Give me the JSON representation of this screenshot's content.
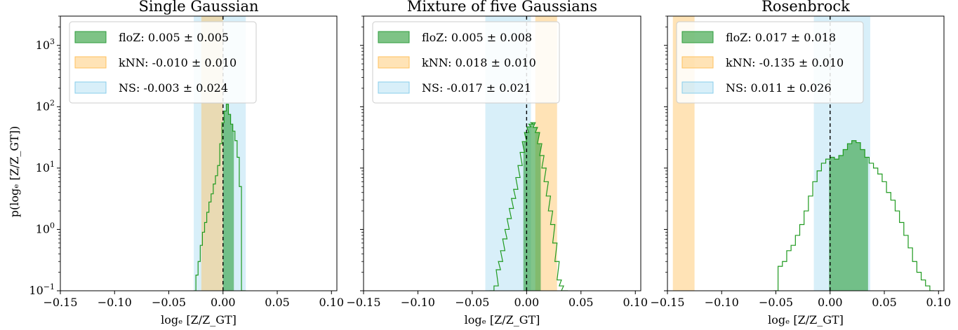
{
  "figure": {
    "ylabel": "p(logₑ [Z/Z_GT])",
    "xlabel": "logₑ [Z/Z_GT]"
  },
  "colors": {
    "floz": "#2e9e3c",
    "knn": "#ffc15e",
    "ns": "#87ceeb",
    "hist_line": "#1f9a1f",
    "axis": "#000000"
  },
  "chart_data": [
    {
      "type": "area",
      "title": "Single Gaussian",
      "xlim": [
        -0.15,
        0.105
      ],
      "ylim": [
        0.1,
        3000
      ],
      "yscale": "log",
      "xticks": [
        -0.15,
        -0.1,
        -0.05,
        0.0,
        0.05,
        0.1
      ],
      "xtick_labels": [
        "−0.15",
        "−0.10",
        "−0.05",
        "0.00",
        "0.05",
        "0.10"
      ],
      "yticks": [
        0.1,
        1,
        10,
        100,
        1000
      ],
      "ytick_labels": [
        "10⁻¹",
        "10⁰",
        "10¹",
        "10²",
        "10³"
      ],
      "legend_position": "top-left",
      "legend": [
        {
          "method": "floZ",
          "label": "floZ: 0.005 ± 0.005"
        },
        {
          "method": "kNN",
          "label": "kNN: -0.010 ± 0.010"
        },
        {
          "method": "NS",
          "label": "NS: -0.003 ± 0.024"
        }
      ],
      "bands": [
        {
          "method": "NS",
          "mean": -0.003,
          "std": 0.024
        },
        {
          "method": "kNN",
          "mean": -0.01,
          "std": 0.01
        },
        {
          "method": "floZ",
          "mean": 0.005,
          "std": 0.005
        }
      ],
      "histogram": {
        "x": [
          -0.026,
          -0.024,
          -0.022,
          -0.02,
          -0.018,
          -0.016,
          -0.014,
          -0.012,
          -0.01,
          -0.008,
          -0.006,
          -0.004,
          -0.002,
          0.0,
          0.002,
          0.004,
          0.006,
          0.008,
          0.01,
          0.012,
          0.014,
          0.016,
          0.018,
          0.02
        ],
        "y": [
          0.1,
          0.18,
          0.3,
          0.55,
          0.9,
          1.3,
          1.9,
          2.8,
          3.8,
          5.5,
          7.5,
          11,
          25,
          55,
          85,
          110,
          75,
          52,
          40,
          28,
          15,
          5,
          0.1,
          0.1
        ]
      },
      "reference_line_x": 0.0
    },
    {
      "type": "area",
      "title": "Mixture of five Gaussians",
      "xlim": [
        -0.15,
        0.105
      ],
      "ylim": [
        0.1,
        3000
      ],
      "yscale": "log",
      "xticks": [
        -0.15,
        -0.1,
        -0.05,
        0.0,
        0.05,
        0.1
      ],
      "xtick_labels": [
        "−0.15",
        "−0.10",
        "−0.05",
        "0.00",
        "0.05",
        "0.10"
      ],
      "yticks": [
        0.1,
        1,
        10,
        100,
        1000
      ],
      "legend_position": "top-left",
      "legend": [
        {
          "method": "floZ",
          "label": "floZ: 0.005 ± 0.008"
        },
        {
          "method": "kNN",
          "label": "kNN: 0.018 ± 0.010"
        },
        {
          "method": "NS",
          "label": "NS: -0.017 ± 0.021"
        }
      ],
      "bands": [
        {
          "method": "NS",
          "mean": -0.017,
          "std": 0.021
        },
        {
          "method": "kNN",
          "mean": 0.018,
          "std": 0.01
        },
        {
          "method": "floZ",
          "mean": 0.005,
          "std": 0.008
        }
      ],
      "histogram": {
        "x": [
          -0.032,
          -0.028,
          -0.026,
          -0.024,
          -0.022,
          -0.02,
          -0.018,
          -0.016,
          -0.014,
          -0.012,
          -0.01,
          -0.008,
          -0.006,
          -0.004,
          -0.002,
          0.0,
          0.002,
          0.004,
          0.006,
          0.008,
          0.01,
          0.012,
          0.014,
          0.016,
          0.018,
          0.02,
          0.022,
          0.024,
          0.026,
          0.028,
          0.03,
          0.032,
          0.034,
          0.036
        ],
        "y": [
          0.1,
          0.12,
          0.22,
          0.3,
          0.45,
          0.7,
          1.0,
          1.5,
          2.2,
          3.2,
          4.5,
          7,
          11,
          18,
          27,
          38,
          47,
          52,
          55,
          46,
          38,
          25,
          16,
          10,
          6,
          3.5,
          2,
          1.2,
          0.6,
          0.3,
          0.15,
          0.12,
          0.1,
          0.1
        ]
      },
      "reference_line_x": 0.0
    },
    {
      "type": "area",
      "title": "Rosenbrock",
      "xlim": [
        -0.15,
        0.105
      ],
      "ylim": [
        0.1,
        3000
      ],
      "yscale": "log",
      "xticks": [
        -0.15,
        -0.1,
        -0.05,
        0.0,
        0.05,
        0.1
      ],
      "xtick_labels": [
        "−0.15",
        "−0.10",
        "−0.05",
        "0.00",
        "0.05",
        "0.10"
      ],
      "yticks": [
        0.1,
        1,
        10,
        100,
        1000
      ],
      "legend_position": "top-left",
      "legend": [
        {
          "method": "floZ",
          "label": "floZ: 0.017 ± 0.018"
        },
        {
          "method": "kNN",
          "label": "kNN: -0.135 ± 0.010"
        },
        {
          "method": "NS",
          "label": "NS: 0.011 ± 0.026"
        }
      ],
      "bands": [
        {
          "method": "NS",
          "mean": 0.011,
          "std": 0.026
        },
        {
          "method": "kNN",
          "mean": -0.135,
          "std": 0.01
        },
        {
          "method": "floZ",
          "mean": 0.017,
          "std": 0.018
        }
      ],
      "histogram": {
        "x": [
          -0.05,
          -0.046,
          -0.042,
          -0.038,
          -0.034,
          -0.03,
          -0.026,
          -0.022,
          -0.018,
          -0.014,
          -0.01,
          -0.006,
          -0.002,
          0.002,
          0.006,
          0.01,
          0.014,
          0.018,
          0.022,
          0.026,
          0.03,
          0.034,
          0.038,
          0.042,
          0.046,
          0.05,
          0.054,
          0.058,
          0.062,
          0.066,
          0.07,
          0.074,
          0.078,
          0.082,
          0.086,
          0.09,
          0.094
        ],
        "y": [
          0.1,
          0.25,
          0.3,
          0.45,
          0.55,
          0.8,
          1.2,
          2,
          3.5,
          6,
          9,
          12,
          14,
          15,
          14,
          16,
          20,
          25,
          28,
          26,
          20,
          15,
          12,
          10,
          8,
          6,
          4,
          3,
          2,
          1.3,
          0.8,
          0.5,
          0.3,
          0.2,
          0.15,
          0.12,
          0.1
        ]
      },
      "reference_line_x": 0.0
    }
  ]
}
